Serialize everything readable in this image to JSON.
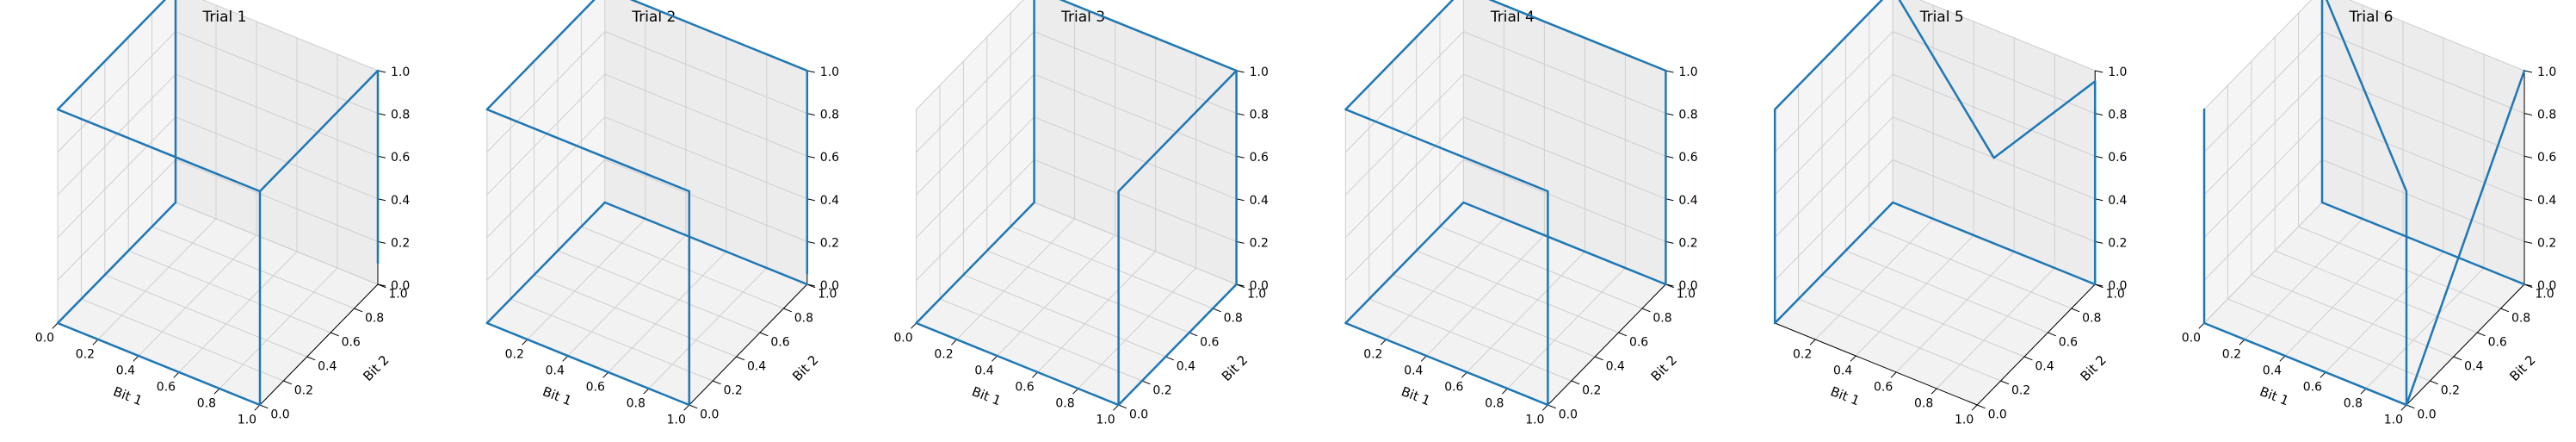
{
  "chart_data": [
    {
      "type": "line3d",
      "title": "Trial 1",
      "xlabel": "Bit 1",
      "ylabel": "Bit 2",
      "zlabel": "",
      "xlim": [
        0,
        1
      ],
      "ylim": [
        0,
        1
      ],
      "zlim": [
        0,
        1
      ],
      "xticks": [
        "0.0",
        "0.2",
        "0.4",
        "0.6",
        "0.8",
        "1.0"
      ],
      "yticks": [
        "0.0",
        "0.2",
        "0.4",
        "0.6",
        "0.8",
        "1.0"
      ],
      "zticks": [
        "0.0",
        "0.2",
        "0.4",
        "0.6",
        "0.8",
        "1.0"
      ],
      "grid": true,
      "series": [
        {
          "color": "#1f77b4",
          "points": [
            [
              1,
              1,
              0.1
            ],
            [
              1,
              1,
              1
            ],
            [
              1,
              0,
              1
            ],
            [
              0,
              0,
              1
            ],
            [
              0,
              1,
              1
            ],
            [
              0,
              1,
              0
            ],
            [
              0,
              0,
              0
            ],
            [
              1,
              0,
              0
            ],
            [
              1,
              0,
              1
            ]
          ]
        }
      ]
    },
    {
      "type": "line3d",
      "title": "Trial 2",
      "xlabel": "Bit 1",
      "ylabel": "Bit 2",
      "zlabel": "",
      "xlim": [
        0,
        1
      ],
      "ylim": [
        0,
        1
      ],
      "zlim": [
        0,
        1
      ],
      "xticks": [
        "0.2",
        "0.4",
        "0.6",
        "0.8",
        "1.0"
      ],
      "yticks": [
        "0.0",
        "0.2",
        "0.4",
        "0.6",
        "0.8",
        "1.0"
      ],
      "zticks": [
        "0.0",
        "0.2",
        "0.4",
        "0.6",
        "0.8",
        "1.0"
      ],
      "grid": true,
      "series": [
        {
          "color": "#1f77b4",
          "points": [
            [
              1,
              1,
              0.05
            ],
            [
              1,
              1,
              1
            ],
            [
              0,
              1,
              1
            ],
            [
              0,
              0,
              1
            ],
            [
              1,
              0,
              1
            ],
            [
              1,
              0,
              0
            ],
            [
              0,
              0,
              0
            ],
            [
              0,
              1,
              0
            ],
            [
              1,
              1,
              0
            ]
          ]
        }
      ]
    },
    {
      "type": "line3d",
      "title": "Trial 3",
      "xlabel": "Bit 1",
      "ylabel": "Bit 2",
      "zlabel": "",
      "xlim": [
        0,
        1
      ],
      "ylim": [
        0,
        1
      ],
      "zlim": [
        0,
        1
      ],
      "xticks": [
        "0.0",
        "0.2",
        "0.4",
        "0.6",
        "0.8",
        "1.0"
      ],
      "yticks": [
        "0.0",
        "0.2",
        "0.4",
        "0.6",
        "0.8",
        "1.0"
      ],
      "zticks": [
        "0.0",
        "0.2",
        "0.4",
        "0.6",
        "0.8",
        "1.0"
      ],
      "grid": true,
      "series": [
        {
          "color": "#1f77b4",
          "points": [
            [
              1,
              1,
              1
            ],
            [
              0,
              1,
              1
            ],
            [
              0,
              1,
              0
            ],
            [
              0,
              0,
              0
            ],
            [
              1,
              0,
              0
            ],
            [
              1,
              1,
              0
            ],
            [
              1,
              1,
              1
            ],
            [
              1,
              0,
              1
            ],
            [
              1,
              0,
              0
            ]
          ]
        }
      ]
    },
    {
      "type": "line3d",
      "title": "Trial 4",
      "xlabel": "Bit 1",
      "ylabel": "Bit 2",
      "zlabel": "",
      "xlim": [
        0,
        1
      ],
      "ylim": [
        0,
        1
      ],
      "zlim": [
        0,
        1
      ],
      "xticks": [
        "0.2",
        "0.4",
        "0.6",
        "0.8",
        "1.0"
      ],
      "yticks": [
        "0.0",
        "0.2",
        "0.4",
        "0.6",
        "0.8",
        "1.0"
      ],
      "zticks": [
        "0.0",
        "0.2",
        "0.4",
        "0.6",
        "0.8",
        "1.0"
      ],
      "grid": true,
      "series": [
        {
          "color": "#1f77b4",
          "points": [
            [
              1,
              0,
              0
            ],
            [
              1,
              0,
              1
            ],
            [
              0,
              0,
              1
            ],
            [
              0,
              1,
              1
            ],
            [
              1,
              1,
              1
            ],
            [
              1,
              1,
              0
            ],
            [
              0,
              1,
              0
            ],
            [
              0,
              0,
              0
            ],
            [
              1,
              0,
              0
            ]
          ]
        }
      ]
    },
    {
      "type": "line3d",
      "title": "Trial 5",
      "xlabel": "Bit 1",
      "ylabel": "Bit 2",
      "zlabel": "",
      "xlim": [
        0,
        1
      ],
      "ylim": [
        0,
        1
      ],
      "zlim": [
        0,
        1
      ],
      "xticks": [
        "0.2",
        "0.4",
        "0.6",
        "0.8",
        "1.0"
      ],
      "yticks": [
        "0.0",
        "0.2",
        "0.4",
        "0.6",
        "0.8",
        "1.0"
      ],
      "zticks": [
        "0.0",
        "0.2",
        "0.4",
        "0.6",
        "0.8",
        "1.0"
      ],
      "grid": true,
      "series": [
        {
          "color": "#1f77b4",
          "points": [
            [
              1,
              1,
              0
            ],
            [
              1,
              1,
              0.05
            ],
            [
              1,
              1,
              0.95
            ],
            [
              1,
              1,
              0.95
            ],
            [
              0.5,
              1,
              0.4
            ],
            [
              0,
              1,
              1
            ],
            [
              0,
              0,
              1
            ],
            [
              0,
              0,
              0
            ],
            [
              0,
              1,
              0
            ],
            [
              1,
              1,
              0
            ]
          ]
        }
      ]
    },
    {
      "type": "line3d",
      "title": "Trial 6",
      "xlabel": "Bit 1",
      "ylabel": "Bit 2",
      "zlabel": "",
      "xlim": [
        0,
        1
      ],
      "ylim": [
        0,
        1
      ],
      "zlim": [
        0,
        1
      ],
      "xticks": [
        "0.0",
        "0.2",
        "0.4",
        "0.6",
        "0.8",
        "1.0"
      ],
      "yticks": [
        "0.0",
        "0.2",
        "0.4",
        "0.6",
        "0.8",
        "1.0"
      ],
      "zticks": [
        "0.0",
        "0.2",
        "0.4",
        "0.6",
        "0.8",
        "1.0"
      ],
      "grid": true,
      "series": [
        {
          "color": "#1f77b4",
          "points": [
            [
              0,
              0,
              1
            ],
            [
              0,
              0,
              0
            ],
            [
              1,
              0,
              0
            ],
            [
              1,
              1,
              1
            ],
            [
              1,
              0,
              0
            ],
            [
              1,
              0,
              1
            ],
            [
              0,
              1,
              1
            ],
            [
              0,
              1,
              0
            ],
            [
              1,
              1,
              0
            ]
          ]
        }
      ]
    }
  ]
}
